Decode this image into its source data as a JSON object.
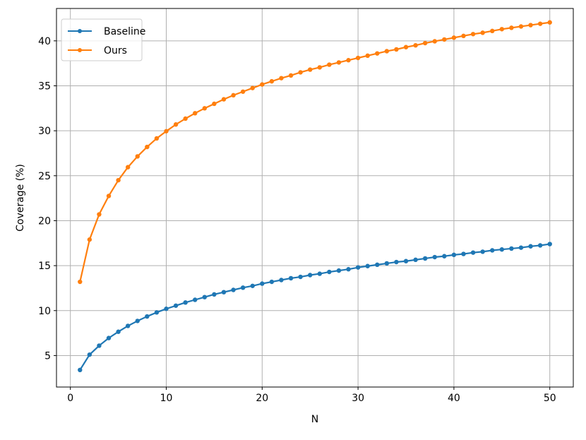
{
  "chart_data": {
    "type": "line",
    "title": "",
    "xlabel": "N",
    "ylabel": "Coverage (%)",
    "xlim": [
      -1.45,
      52.45
    ],
    "ylim": [
      1.5,
      43.6
    ],
    "xticks": [
      0,
      10,
      20,
      30,
      40,
      50
    ],
    "yticks": [
      5,
      10,
      15,
      20,
      25,
      30,
      35,
      40
    ],
    "grid": true,
    "legend": "upper-left",
    "x": [
      1,
      2,
      3,
      4,
      5,
      6,
      7,
      8,
      9,
      10,
      11,
      12,
      13,
      14,
      15,
      16,
      17,
      18,
      19,
      20,
      21,
      22,
      23,
      24,
      25,
      26,
      27,
      28,
      29,
      30,
      31,
      32,
      33,
      34,
      35,
      36,
      37,
      38,
      39,
      40,
      41,
      42,
      43,
      44,
      45,
      46,
      47,
      48,
      49,
      50
    ],
    "series": [
      {
        "name": "Baseline",
        "color": "#1f77b4",
        "values": [
          3.4,
          5.1,
          6.1,
          6.95,
          7.65,
          8.3,
          8.85,
          9.35,
          9.8,
          10.2,
          10.55,
          10.9,
          11.2,
          11.5,
          11.8,
          12.05,
          12.3,
          12.55,
          12.75,
          13.0,
          13.2,
          13.4,
          13.6,
          13.75,
          13.95,
          14.1,
          14.3,
          14.45,
          14.6,
          14.8,
          14.95,
          15.1,
          15.25,
          15.4,
          15.5,
          15.65,
          15.8,
          15.95,
          16.05,
          16.2,
          16.3,
          16.45,
          16.55,
          16.7,
          16.8,
          16.9,
          17.0,
          17.15,
          17.25,
          17.4
        ]
      },
      {
        "name": "Ours",
        "color": "#ff7f0e",
        "values": [
          13.2,
          17.9,
          20.7,
          22.75,
          24.5,
          25.95,
          27.15,
          28.2,
          29.15,
          29.95,
          30.7,
          31.35,
          31.95,
          32.5,
          33.0,
          33.5,
          33.95,
          34.35,
          34.75,
          35.15,
          35.5,
          35.85,
          36.15,
          36.5,
          36.8,
          37.05,
          37.35,
          37.6,
          37.85,
          38.1,
          38.35,
          38.6,
          38.85,
          39.05,
          39.3,
          39.5,
          39.75,
          39.95,
          40.15,
          40.35,
          40.55,
          40.75,
          40.9,
          41.1,
          41.3,
          41.45,
          41.6,
          41.75,
          41.9,
          42.05
        ]
      }
    ]
  }
}
